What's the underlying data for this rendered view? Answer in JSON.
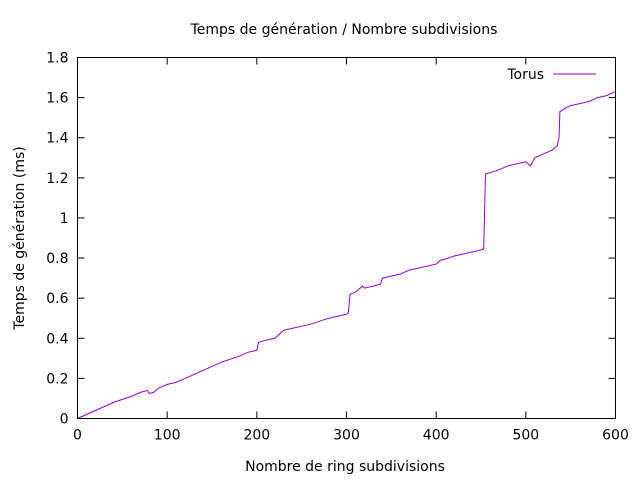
{
  "chart_data": {
    "type": "line",
    "title": "Temps de génération / Nombre subdivisions",
    "xlabel": "Nombre de ring subdivisions",
    "ylabel": "Temps de génération (ms)",
    "xlim": [
      0,
      600
    ],
    "ylim": [
      0,
      1.8
    ],
    "xticks": [
      0,
      100,
      200,
      300,
      400,
      500,
      600
    ],
    "yticks": [
      0,
      0.2,
      0.4,
      0.6,
      0.8,
      1,
      1.2,
      1.4,
      1.6,
      1.8
    ],
    "grid": false,
    "legend_position": "top-right",
    "series": [
      {
        "name": "Torus",
        "color": "#9400d3",
        "points": [
          [
            0,
            0.0
          ],
          [
            10,
            0.02
          ],
          [
            20,
            0.04
          ],
          [
            30,
            0.06
          ],
          [
            40,
            0.08
          ],
          [
            50,
            0.095
          ],
          [
            60,
            0.11
          ],
          [
            70,
            0.13
          ],
          [
            78,
            0.14
          ],
          [
            80,
            0.125
          ],
          [
            85,
            0.13
          ],
          [
            90,
            0.15
          ],
          [
            100,
            0.17
          ],
          [
            110,
            0.18
          ],
          [
            120,
            0.2
          ],
          [
            130,
            0.22
          ],
          [
            140,
            0.24
          ],
          [
            150,
            0.26
          ],
          [
            160,
            0.28
          ],
          [
            170,
            0.295
          ],
          [
            180,
            0.31
          ],
          [
            190,
            0.33
          ],
          [
            200,
            0.34
          ],
          [
            202,
            0.38
          ],
          [
            210,
            0.39
          ],
          [
            220,
            0.4
          ],
          [
            225,
            0.42
          ],
          [
            230,
            0.44
          ],
          [
            240,
            0.45
          ],
          [
            250,
            0.46
          ],
          [
            260,
            0.47
          ],
          [
            270,
            0.485
          ],
          [
            280,
            0.5
          ],
          [
            290,
            0.51
          ],
          [
            300,
            0.52
          ],
          [
            302,
            0.525
          ],
          [
            304,
            0.62
          ],
          [
            310,
            0.63
          ],
          [
            318,
            0.66
          ],
          [
            320,
            0.65
          ],
          [
            330,
            0.66
          ],
          [
            338,
            0.67
          ],
          [
            340,
            0.7
          ],
          [
            350,
            0.71
          ],
          [
            360,
            0.72
          ],
          [
            370,
            0.74
          ],
          [
            380,
            0.75
          ],
          [
            390,
            0.76
          ],
          [
            400,
            0.77
          ],
          [
            405,
            0.79
          ],
          [
            410,
            0.795
          ],
          [
            420,
            0.81
          ],
          [
            430,
            0.82
          ],
          [
            440,
            0.83
          ],
          [
            450,
            0.84
          ],
          [
            453,
            0.845
          ],
          [
            455,
            1.22
          ],
          [
            460,
            1.225
          ],
          [
            470,
            1.24
          ],
          [
            480,
            1.26
          ],
          [
            490,
            1.27
          ],
          [
            500,
            1.28
          ],
          [
            505,
            1.26
          ],
          [
            510,
            1.3
          ],
          [
            520,
            1.32
          ],
          [
            530,
            1.34
          ],
          [
            535,
            1.36
          ],
          [
            537,
            1.4
          ],
          [
            538,
            1.53
          ],
          [
            545,
            1.55
          ],
          [
            550,
            1.56
          ],
          [
            560,
            1.57
          ],
          [
            570,
            1.58
          ],
          [
            580,
            1.6
          ],
          [
            590,
            1.61
          ],
          [
            600,
            1.63
          ]
        ]
      }
    ]
  }
}
